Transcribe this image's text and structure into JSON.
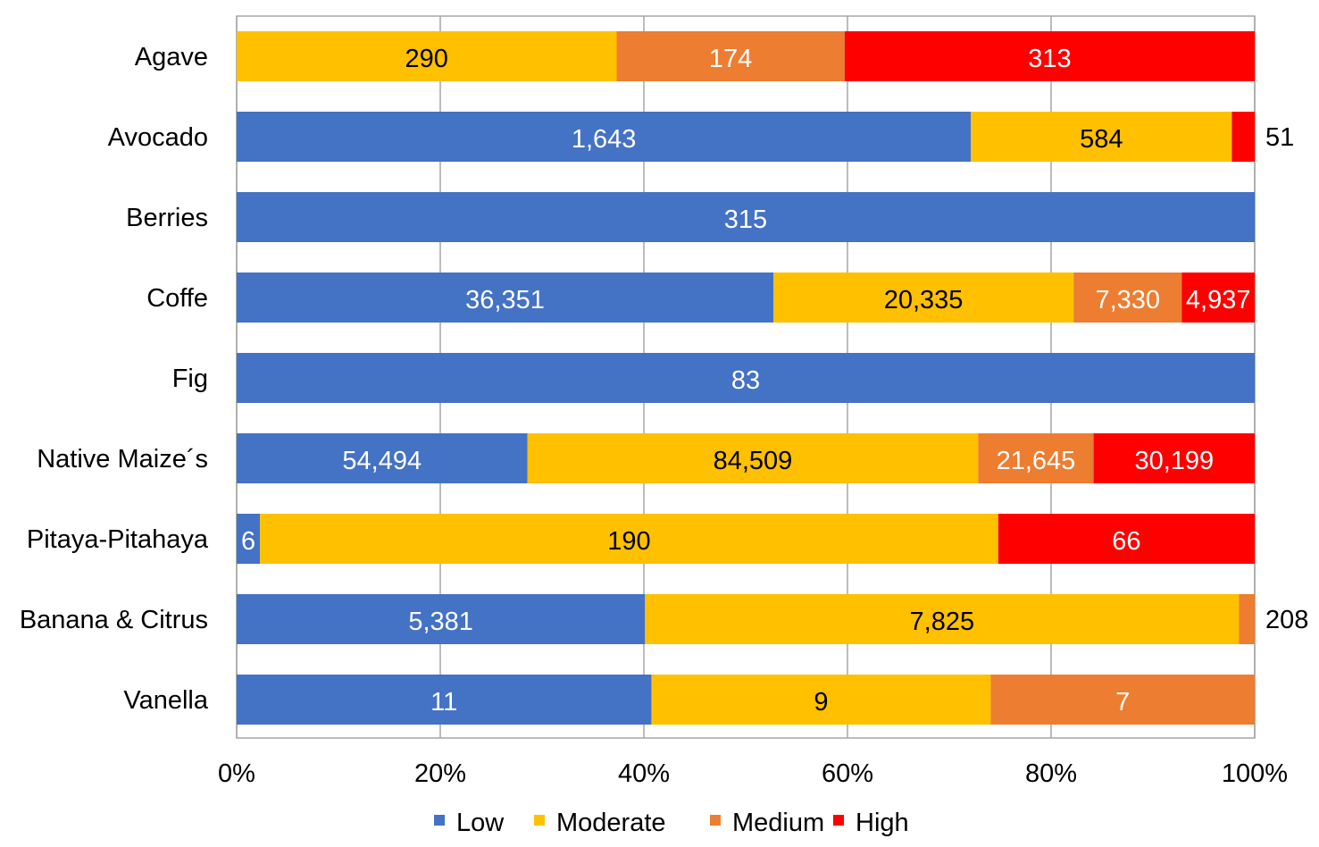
{
  "chart_data": {
    "type": "bar",
    "orientation": "horizontal",
    "stacked": "percent",
    "title": "",
    "xlabel": "",
    "ylabel": "",
    "xlim": [
      0,
      100
    ],
    "grid": true,
    "legend_position": "bottom",
    "categories": [
      "Agave",
      "Avocado",
      "Berries",
      "Coffe",
      "Fig",
      "Native  Maize´s",
      "Pitaya-Pitahaya",
      "Banana  & Citrus",
      "Vanella"
    ],
    "x_ticks": [
      "0%",
      "20%",
      "40%",
      "60%",
      "80%",
      "100%"
    ],
    "series": [
      {
        "name": "Low",
        "color": "#4472C4",
        "label_color": "#ffffff",
        "values": [
          0,
          1643,
          315,
          36351,
          83,
          54494,
          6,
          5381,
          11
        ],
        "labels": [
          "",
          "1,643",
          "315",
          "36,351",
          "83",
          "54,494",
          "6",
          "5,381",
          "11"
        ]
      },
      {
        "name": "Moderate",
        "color": "#FFC000",
        "label_color": "#000000",
        "values": [
          290,
          584,
          0,
          20335,
          0,
          84509,
          190,
          7825,
          9
        ],
        "labels": [
          "290",
          "584",
          "",
          "20,335",
          "",
          "84,509",
          "190",
          "7,825",
          "9"
        ]
      },
      {
        "name": "Medium",
        "color": "#ED7D31",
        "label_color": "#ffffff",
        "values": [
          174,
          0,
          0,
          7330,
          0,
          21645,
          0,
          208,
          7
        ],
        "labels": [
          "174",
          "",
          "",
          "7,330",
          "",
          "21,645",
          "",
          "208",
          "7"
        ]
      },
      {
        "name": "High",
        "color": "#FF0000",
        "label_color": "#ffffff",
        "values": [
          313,
          51,
          0,
          4937,
          0,
          30199,
          66,
          0,
          0
        ],
        "labels": [
          "313",
          "51",
          "",
          "4,937",
          "",
          "30,199",
          "66",
          "",
          ""
        ]
      }
    ],
    "outside_labels": [
      {
        "category": "Avocado",
        "series": "High",
        "text": "51"
      },
      {
        "category": "Banana  & Citrus",
        "series": "Medium",
        "text": "208"
      }
    ]
  }
}
